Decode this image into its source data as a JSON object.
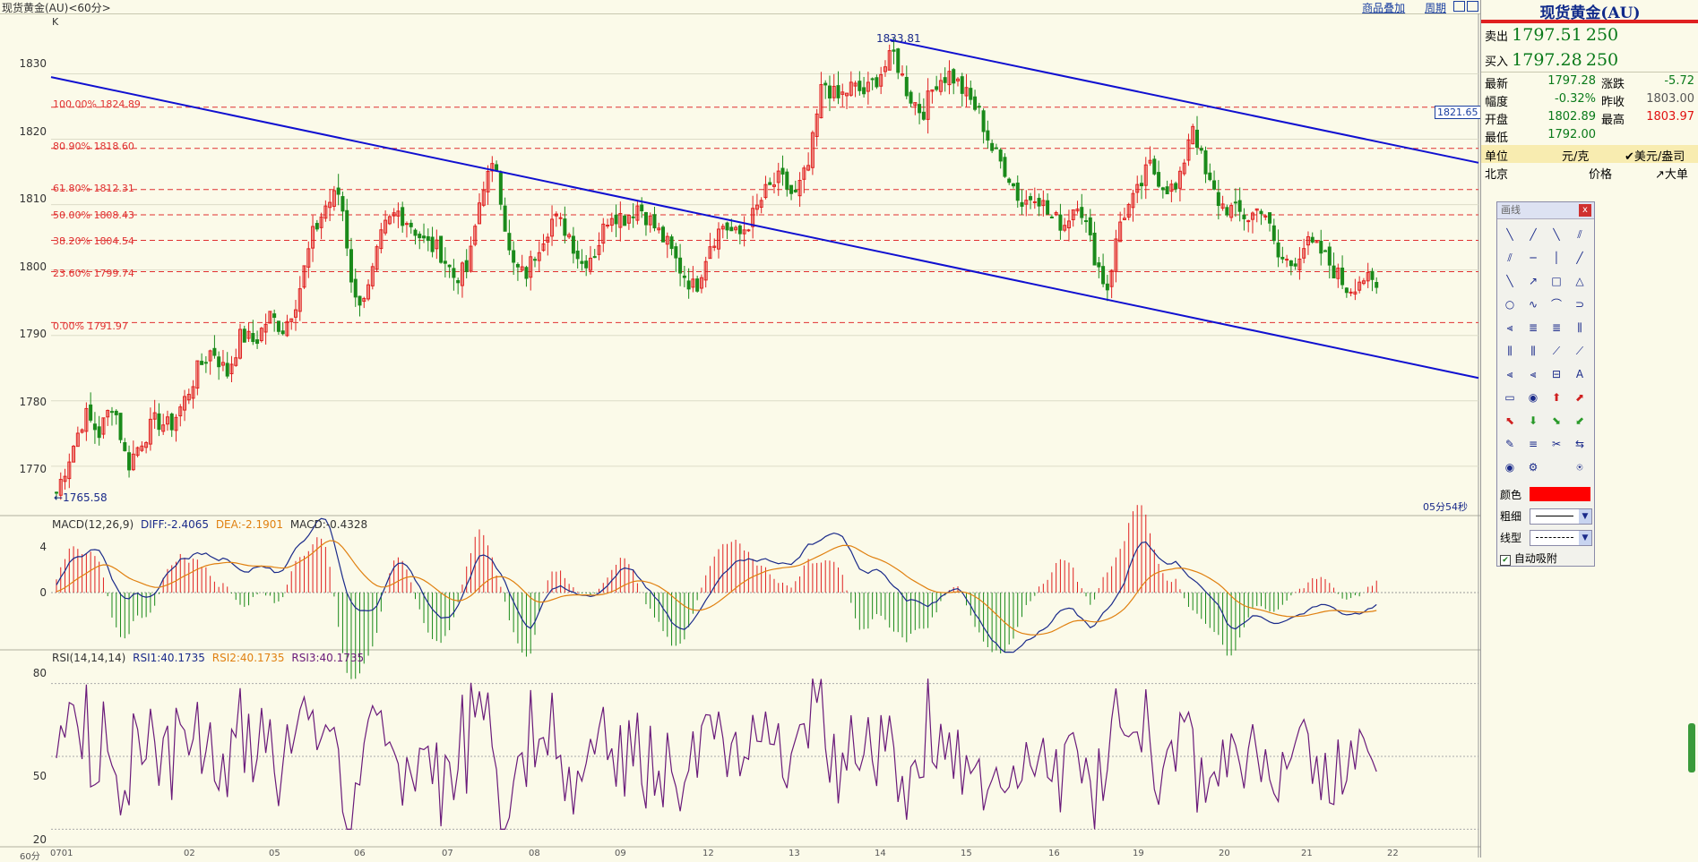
{
  "chart_header": {
    "title": "现货黄金(AU)<60分>",
    "links": [
      "商品叠加",
      "周期"
    ],
    "k_label": "K",
    "timer": "05分54秒",
    "period_label": "60分"
  },
  "price_axis": {
    "labels": [
      "1830",
      "1820",
      "1810",
      "1800",
      "1790",
      "1780",
      "1770"
    ]
  },
  "fib_levels": [
    {
      "label": "100.00% 1824.89",
      "price": 1824.89
    },
    {
      "label": "80.90% 1818.60",
      "price": 1818.6
    },
    {
      "label": "61.80% 1812.31",
      "price": 1812.31
    },
    {
      "label": "50.00% 1808.43",
      "price": 1808.43
    },
    {
      "label": "38.20% 1804.54",
      "price": 1804.54
    },
    {
      "label": "23.60% 1799.74",
      "price": 1799.74
    },
    {
      "label": "0.00% 1791.97",
      "price": 1791.97
    }
  ],
  "price_labels": {
    "high": "1833.81",
    "low": "←1765.58",
    "current_tag": "1821.65"
  },
  "chart_data": [
    {
      "type": "candlestick",
      "title": "现货黄金(AU)<60分>",
      "ylim": [
        1763,
        1838
      ],
      "xticks": [
        "0701",
        "02",
        "05",
        "06",
        "07",
        "08",
        "09",
        "12",
        "13",
        "14",
        "15",
        "16",
        "19",
        "20",
        "21",
        "22"
      ],
      "key_prices": {
        "high": 1833.81,
        "low": 1765.58,
        "last": 1797.28
      },
      "close_path": [
        1766,
        1772,
        1778,
        1775,
        1780,
        1770,
        1774,
        1777,
        1776,
        1780,
        1785,
        1788,
        1784,
        1790,
        1789,
        1793,
        1791,
        1796,
        1805,
        1810,
        1812,
        1795,
        1797,
        1806,
        1809,
        1807,
        1804,
        1803,
        1799,
        1800,
        1813,
        1816,
        1801,
        1799,
        1804,
        1808,
        1806,
        1801,
        1803,
        1809,
        1808,
        1810,
        1807,
        1804,
        1800,
        1797,
        1804,
        1807,
        1805,
        1808,
        1812,
        1814,
        1811,
        1816,
        1829,
        1826,
        1828,
        1827,
        1830,
        1833,
        1827,
        1824,
        1829,
        1830,
        1827,
        1824,
        1818,
        1815,
        1810,
        1812,
        1808,
        1807,
        1811,
        1803,
        1797,
        1808,
        1811,
        1816,
        1813,
        1812,
        1823,
        1814,
        1810,
        1809,
        1808,
        1810,
        1802,
        1801,
        1804,
        1803,
        1800,
        1797,
        1799,
        1797
      ]
    },
    {
      "type": "bar+line",
      "title": "MACD(12,26,9)",
      "series": [
        {
          "name": "DIFF",
          "last": -2.4065,
          "color": "#1a2a8a"
        },
        {
          "name": "DEA",
          "last": -2.1901,
          "color": "#e08010"
        },
        {
          "name": "MACD",
          "last": -0.4328
        }
      ],
      "yticks": [
        "4",
        "0"
      ]
    },
    {
      "type": "line",
      "title": "RSI(14,14,14)",
      "series": [
        {
          "name": "RSI1",
          "last": 40.1735,
          "color": "#1a2a8a"
        },
        {
          "name": "RSI2",
          "last": 40.1735,
          "color": "#e08010"
        },
        {
          "name": "RSI3",
          "last": 40.1735,
          "color": "#6a1a7a"
        }
      ],
      "yticks": [
        "80",
        "50",
        "20"
      ]
    }
  ],
  "indicators": {
    "macd_title": "MACD(12,26,9)",
    "diff": "DIFF:-2.4065",
    "dea": "DEA:-2.1901",
    "macd": "MACD:-0.4328",
    "macd_ticks": [
      "4",
      "0"
    ],
    "rsi_title": "RSI(14,14,14)",
    "rsi1": "RSI1:40.1735",
    "rsi2": "RSI2:40.1735",
    "rsi3": "RSI3:40.1735",
    "rsi_ticks": [
      "80",
      "50",
      "20"
    ]
  },
  "date_ticks": [
    "0701",
    "02",
    "05",
    "06",
    "07",
    "08",
    "09",
    "12",
    "13",
    "14",
    "15",
    "16",
    "19",
    "20",
    "21",
    "22"
  ],
  "quote": {
    "title": "现货黄金(AU)",
    "sell_label": "卖出",
    "sell_price": "1797.51",
    "sell_qty": "250",
    "buy_label": "买入",
    "buy_price": "1797.28",
    "buy_qty": "250",
    "latest_label": "最新",
    "latest": "1797.28",
    "change_label": "涨跌",
    "change": "-5.72",
    "range_label": "幅度",
    "range": "-0.32%",
    "prevclose_label": "昨收",
    "prevclose": "1803.00",
    "open_label": "开盘",
    "open": "1802.89",
    "high_label": "最高",
    "high": "1803.97",
    "low_label": "最低",
    "low": "1792.00",
    "unit_label": "单位",
    "unit_value": "元/克",
    "unit_alt": "✔美元/盎司",
    "city": "北京",
    "price_col": "价格",
    "bigorder": "↗大单"
  },
  "toolbox": {
    "title": "画线",
    "close": "x",
    "color_label": "颜色",
    "weight_label": "粗细",
    "style_label": "线型",
    "auto_snap": "自动吸附",
    "color_value": "#ff0000"
  }
}
